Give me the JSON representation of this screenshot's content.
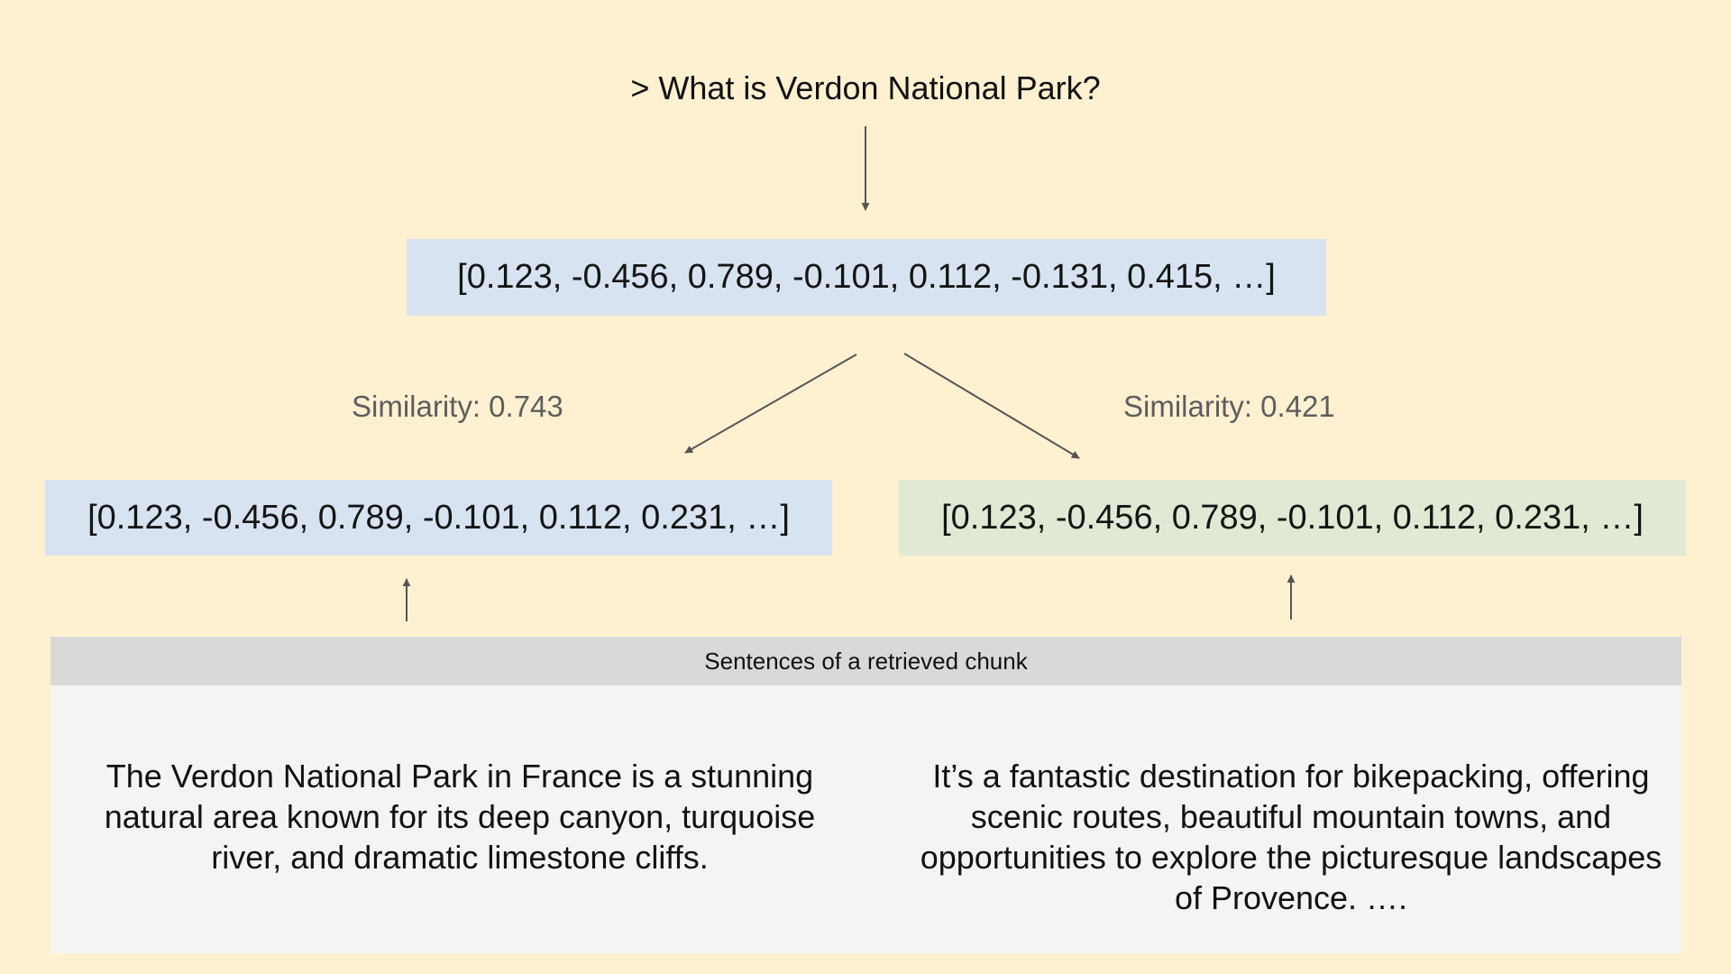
{
  "query": "> What is Verdon National Park?",
  "query_vector": "[0.123, -0.456, 0.789, -0.101, 0.112, -0.131, 0.415, …]",
  "similarity_left": "Similarity: 0.743",
  "similarity_right": "Similarity: 0.421",
  "left_vector": "[0.123, -0.456, 0.789, -0.101, 0.112, 0.231, …]",
  "right_vector": "[0.123, -0.456, 0.789, -0.101, 0.112, 0.231, …]",
  "chunk": {
    "header": "Sentences of a retrieved chunk",
    "sentence_left": "The Verdon National Park in France is a stunning natural area known for its deep canyon, turquoise river, and dramatic limestone cliffs.",
    "sentence_right": "It’s a fantastic destination for bikepacking, offering scenic routes, beautiful mountain towns, and opportunities to explore the picturesque landscapes of Provence. …."
  },
  "colors": {
    "background": "#fdf1d1",
    "blue_box": "#d7e3f1",
    "green_box": "#dfe9d4",
    "chunk_header": "#d9d9d9",
    "chunk_body": "#f4f4f4",
    "arrow": "#555555",
    "similarity_text": "#5e5e5e"
  }
}
